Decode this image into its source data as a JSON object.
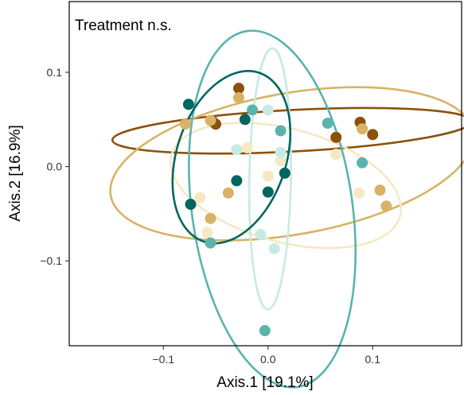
{
  "chart_data": {
    "type": "scatter",
    "annotation": "Treatment n.s.",
    "xlabel": "Axis.1   [19.1%]",
    "ylabel": "Axis.2   [16.9%]",
    "xlim": [
      -0.19,
      0.185
    ],
    "ylim": [
      -0.19,
      0.175
    ],
    "x_ticks": [
      -0.1,
      0.0,
      0.1
    ],
    "x_tick_labels": [
      "−0.1",
      "0.0",
      "0.1"
    ],
    "y_ticks": [
      -0.1,
      0.0,
      0.1
    ],
    "y_tick_labels": [
      "−0.1",
      "0.0",
      "0.1"
    ],
    "grid": false,
    "legend": "none",
    "series": [
      {
        "color": "#8c510a",
        "points": [
          [
            -0.028,
            0.083
          ],
          [
            -0.053,
            0.048
          ],
          [
            -0.05,
            0.045
          ],
          [
            0.065,
            0.031
          ],
          [
            0.088,
            0.047
          ],
          [
            0.1,
            0.034
          ]
        ],
        "ellipse": {
          "cx": 0.023,
          "cy": 0.038,
          "rx": 0.172,
          "ry": 0.022,
          "angle_deg": -3
        }
      },
      {
        "color": "#d8b365",
        "points": [
          [
            -0.079,
            0.045
          ],
          [
            -0.055,
            0.049
          ],
          [
            -0.028,
            0.073
          ],
          [
            -0.038,
            -0.028
          ],
          [
            -0.055,
            -0.055
          ],
          [
            0.09,
            0.04
          ],
          [
            0.107,
            -0.025
          ],
          [
            0.113,
            -0.042
          ]
        ],
        "ellipse": {
          "cx": 0.023,
          "cy": 0.003,
          "rx": 0.176,
          "ry": 0.075,
          "angle_deg": -10
        }
      },
      {
        "color": "#f6e8c3",
        "points": [
          [
            -0.065,
            -0.033
          ],
          [
            -0.058,
            -0.07
          ],
          [
            -0.02,
            0.02
          ],
          [
            0.0,
            -0.01
          ],
          [
            0.012,
            0.006
          ],
          [
            0.065,
            0.013
          ],
          [
            0.087,
            -0.028
          ]
        ],
        "ellipse": {
          "cx": 0.017,
          "cy": -0.02,
          "rx": 0.113,
          "ry": 0.06,
          "angle_deg": 15
        }
      },
      {
        "color": "#c7eae5",
        "points": [
          [
            -0.03,
            0.018
          ],
          [
            -0.007,
            -0.072
          ],
          [
            0.006,
            -0.087
          ],
          [
            0.012,
            0.015
          ],
          [
            0.0,
            0.06
          ]
        ],
        "ellipse": {
          "cx": 0.002,
          "cy": -0.013,
          "rx": 0.125,
          "ry": 0.022,
          "angle_deg": -89
        }
      },
      {
        "color": "#5ab4ac",
        "points": [
          [
            -0.055,
            -0.081
          ],
          [
            -0.015,
            0.06
          ],
          [
            0.012,
            0.038
          ],
          [
            0.057,
            0.046
          ],
          [
            0.09,
            0.004
          ],
          [
            -0.003,
            -0.174
          ]
        ],
        "ellipse": {
          "cx": 0.004,
          "cy": -0.045,
          "rx": 0.172,
          "ry": 0.085,
          "angle_deg": -98
        }
      },
      {
        "color": "#01665e",
        "points": [
          [
            -0.076,
            0.066
          ],
          [
            -0.074,
            -0.04
          ],
          [
            -0.03,
            -0.015
          ],
          [
            -0.022,
            0.05
          ],
          [
            0.0,
            -0.027
          ],
          [
            0.016,
            -0.007
          ]
        ],
        "ellipse": {
          "cx": -0.035,
          "cy": 0.01,
          "rx": 0.085,
          "ry": 0.058,
          "angle_deg": -72
        }
      }
    ]
  }
}
